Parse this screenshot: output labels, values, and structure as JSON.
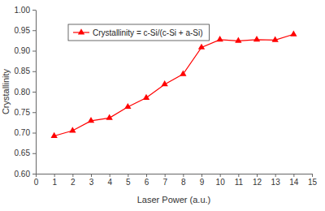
{
  "chart_data": {
    "type": "line",
    "x_label": "Laser Power (a.u.)",
    "y_label": "Crystallinity",
    "x": [
      1,
      2,
      3,
      4,
      5,
      6,
      7,
      8,
      9,
      10,
      11,
      12,
      13,
      14
    ],
    "series": [
      {
        "name": "Crystallinity = c-Si/(c-Si + a-Si)",
        "color": "#ff0000",
        "marker": "triangle",
        "line_style": "solid",
        "values": [
          0.692,
          0.705,
          0.729,
          0.736,
          0.763,
          0.785,
          0.818,
          0.843,
          0.908,
          0.927,
          0.924,
          0.927,
          0.926,
          0.94
        ]
      }
    ],
    "xlim": [
      0,
      15
    ],
    "xticks": [
      0,
      1,
      2,
      3,
      4,
      5,
      6,
      7,
      8,
      9,
      10,
      11,
      12,
      13,
      14,
      15
    ],
    "ylim": [
      0.6,
      1.0
    ],
    "yticks": [
      {
        "value": 0.6,
        "label": "0.60"
      },
      0.65,
      {
        "value": 0.7,
        "label": "0.70"
      },
      0.75,
      {
        "value": 0.8,
        "label": "0.80"
      },
      0.85,
      {
        "value": 0.9,
        "label": "0.90"
      },
      0.95,
      {
        "value": 1.0,
        "label": "1.00"
      }
    ],
    "grid": false,
    "legend": "upper left"
  }
}
